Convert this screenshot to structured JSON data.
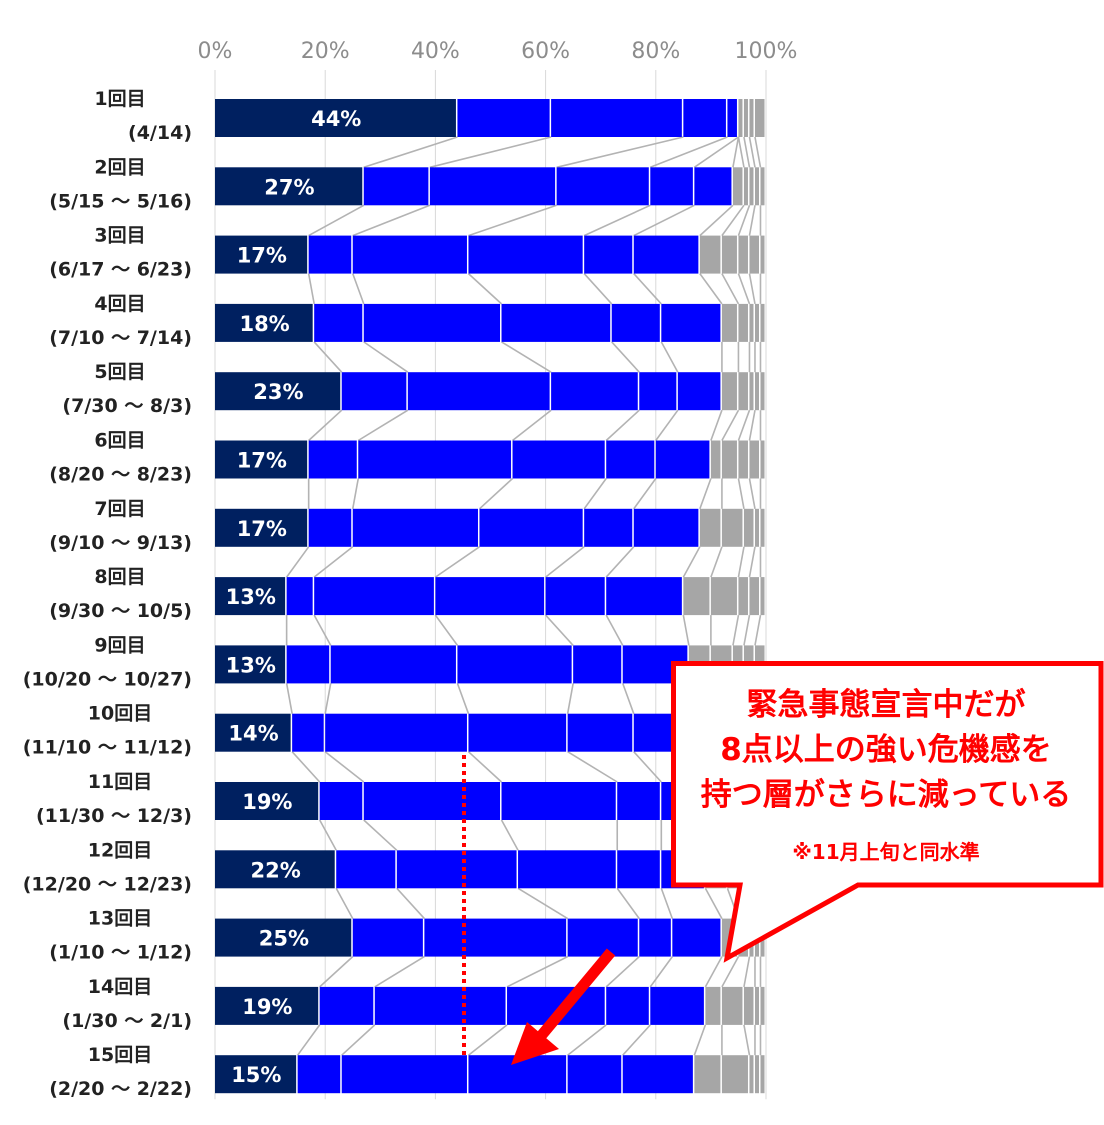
{
  "colors": {
    "highlight": "#002060",
    "blue": "#0000ff",
    "gray": "#a6a6a6",
    "connector": "#b3b3b3",
    "callout": "#ff0000"
  },
  "callout": {
    "line1": "緊急事態宣言中だが",
    "line2": "8点以上の強い危機感を",
    "line3": "持つ層がさらに減っている",
    "note": "※11月上旬と同水準"
  },
  "chart_data": {
    "type": "bar",
    "stacked": true,
    "percent": true,
    "orientation": "horizontal",
    "xlim": [
      0,
      100
    ],
    "x_ticks": [
      "0%",
      "20%",
      "40%",
      "60%",
      "80%",
      "100%"
    ],
    "categories": [
      {
        "line1": "1回目",
        "line2": "(4/14)"
      },
      {
        "line1": "2回目",
        "line2": "(5/15 ～ 5/16)"
      },
      {
        "line1": "3回目",
        "line2": "(6/17 ～ 6/23)"
      },
      {
        "line1": "4回目",
        "line2": "(7/10 ～ 7/14)"
      },
      {
        "line1": "5回目",
        "line2": "(7/30 ～ 8/3)"
      },
      {
        "line1": "6回目",
        "line2": "(8/20 ～ 8/23)"
      },
      {
        "line1": "7回目",
        "line2": "(9/10 ～ 9/13)"
      },
      {
        "line1": "8回目",
        "line2": "(9/30 ～ 10/5)"
      },
      {
        "line1": "9回目",
        "line2": "(10/20 ～ 10/27)"
      },
      {
        "line1": "10回目",
        "line2": "(11/10 ～ 11/12)"
      },
      {
        "line1": "11回目",
        "line2": "(11/30 ～ 12/3)"
      },
      {
        "line1": "12回目",
        "line2": "(12/20 ～ 12/23)"
      },
      {
        "line1": "13回目",
        "line2": "(1/10 ～ 1/12)"
      },
      {
        "line1": "14回目",
        "line2": "(1/30 ～ 2/1)"
      },
      {
        "line1": "15回目",
        "line2": "(2/20 ～ 2/22)"
      }
    ],
    "first_segment_labels": [
      "44%",
      "27%",
      "17%",
      "18%",
      "23%",
      "17%",
      "17%",
      "13%",
      "13%",
      "14%",
      "19%",
      "22%",
      "25%",
      "19%",
      "15%"
    ],
    "segment_colors": [
      "highlight",
      "blue",
      "blue",
      "blue",
      "blue",
      "blue",
      "gray",
      "gray",
      "gray",
      "gray",
      "gray"
    ],
    "rows": [
      [
        44,
        17,
        24,
        8,
        2,
        0,
        0,
        1,
        1,
        1,
        2
      ],
      [
        27,
        12,
        23,
        17,
        8,
        7,
        2,
        1,
        1,
        1,
        1
      ],
      [
        17,
        8,
        21,
        21,
        9,
        12,
        4,
        3,
        2,
        2,
        1
      ],
      [
        18,
        9,
        25,
        20,
        9,
        11,
        3,
        2,
        1,
        1,
        1
      ],
      [
        23,
        12,
        26,
        16,
        7,
        8,
        3,
        2,
        1,
        1,
        1
      ],
      [
        17,
        9,
        28,
        17,
        9,
        10,
        2,
        3,
        2,
        2,
        1
      ],
      [
        17,
        8,
        23,
        19,
        9,
        12,
        4,
        4,
        2,
        1,
        1
      ],
      [
        13,
        5,
        22,
        20,
        11,
        14,
        5,
        5,
        2,
        2,
        1
      ],
      [
        13,
        8,
        23,
        21,
        9,
        12,
        4,
        4,
        2,
        2,
        2
      ],
      [
        14,
        6,
        26,
        18,
        12,
        11,
        4,
        3,
        3,
        2,
        1
      ],
      [
        19,
        8,
        25,
        21,
        8,
        10,
        3,
        2,
        2,
        1,
        1
      ],
      [
        22,
        11,
        22,
        18,
        8,
        8,
        4,
        3,
        2,
        1,
        1
      ],
      [
        25,
        13,
        26,
        13,
        6,
        9,
        3,
        2,
        1,
        1,
        1
      ],
      [
        19,
        10,
        24,
        18,
        8,
        10,
        3,
        4,
        2,
        1,
        1
      ],
      [
        15,
        8,
        23,
        18,
        10,
        13,
        5,
        5,
        1,
        1,
        1
      ]
    ]
  }
}
